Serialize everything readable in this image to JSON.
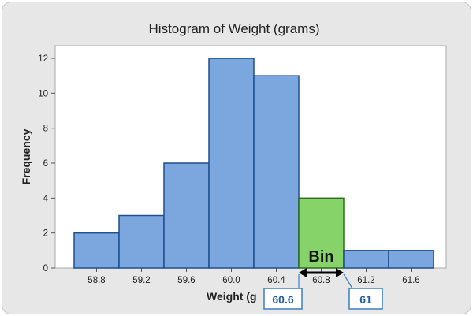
{
  "chart_data": {
    "type": "bar",
    "title": "Histogram of Weight (grams)",
    "xlabel": "Weight (grams)",
    "xlabel_visible": "Weight (g",
    "ylabel": "Frequency",
    "x_ticks": [
      "58.8",
      "59.2",
      "59.6",
      "60.0",
      "60.4",
      "60.8",
      "61.2",
      "61.6"
    ],
    "y_ticks": [
      "0",
      "2",
      "4",
      "6",
      "8",
      "10",
      "12"
    ],
    "ylim": [
      0,
      13
    ],
    "xlim": [
      58.6,
      61.8
    ],
    "bin_width": 0.4,
    "bins": [
      {
        "center": 58.8,
        "value": 2
      },
      {
        "center": 59.2,
        "value": 3
      },
      {
        "center": 59.6,
        "value": 6
      },
      {
        "center": 60.0,
        "value": 12
      },
      {
        "center": 60.4,
        "value": 11
      },
      {
        "center": 60.8,
        "value": 4,
        "highlighted": true
      },
      {
        "center": 61.2,
        "value": 1
      },
      {
        "center": 61.6,
        "value": 1
      }
    ],
    "grid": false,
    "annotation": {
      "label": "Bin",
      "left_edge_label": "60.6",
      "right_edge_label": "61",
      "left_edge": 60.6,
      "right_edge": 61.0
    }
  },
  "colors": {
    "bar_fill": "#7ba7de",
    "bar_stroke": "#1e4f8f",
    "highlight_fill": "#86d36a",
    "highlight_stroke": "#2d6b1d",
    "plot_bg": "#ffffff",
    "callout_border": "#3b7ec4",
    "callout_text": "#1f5fa8"
  }
}
